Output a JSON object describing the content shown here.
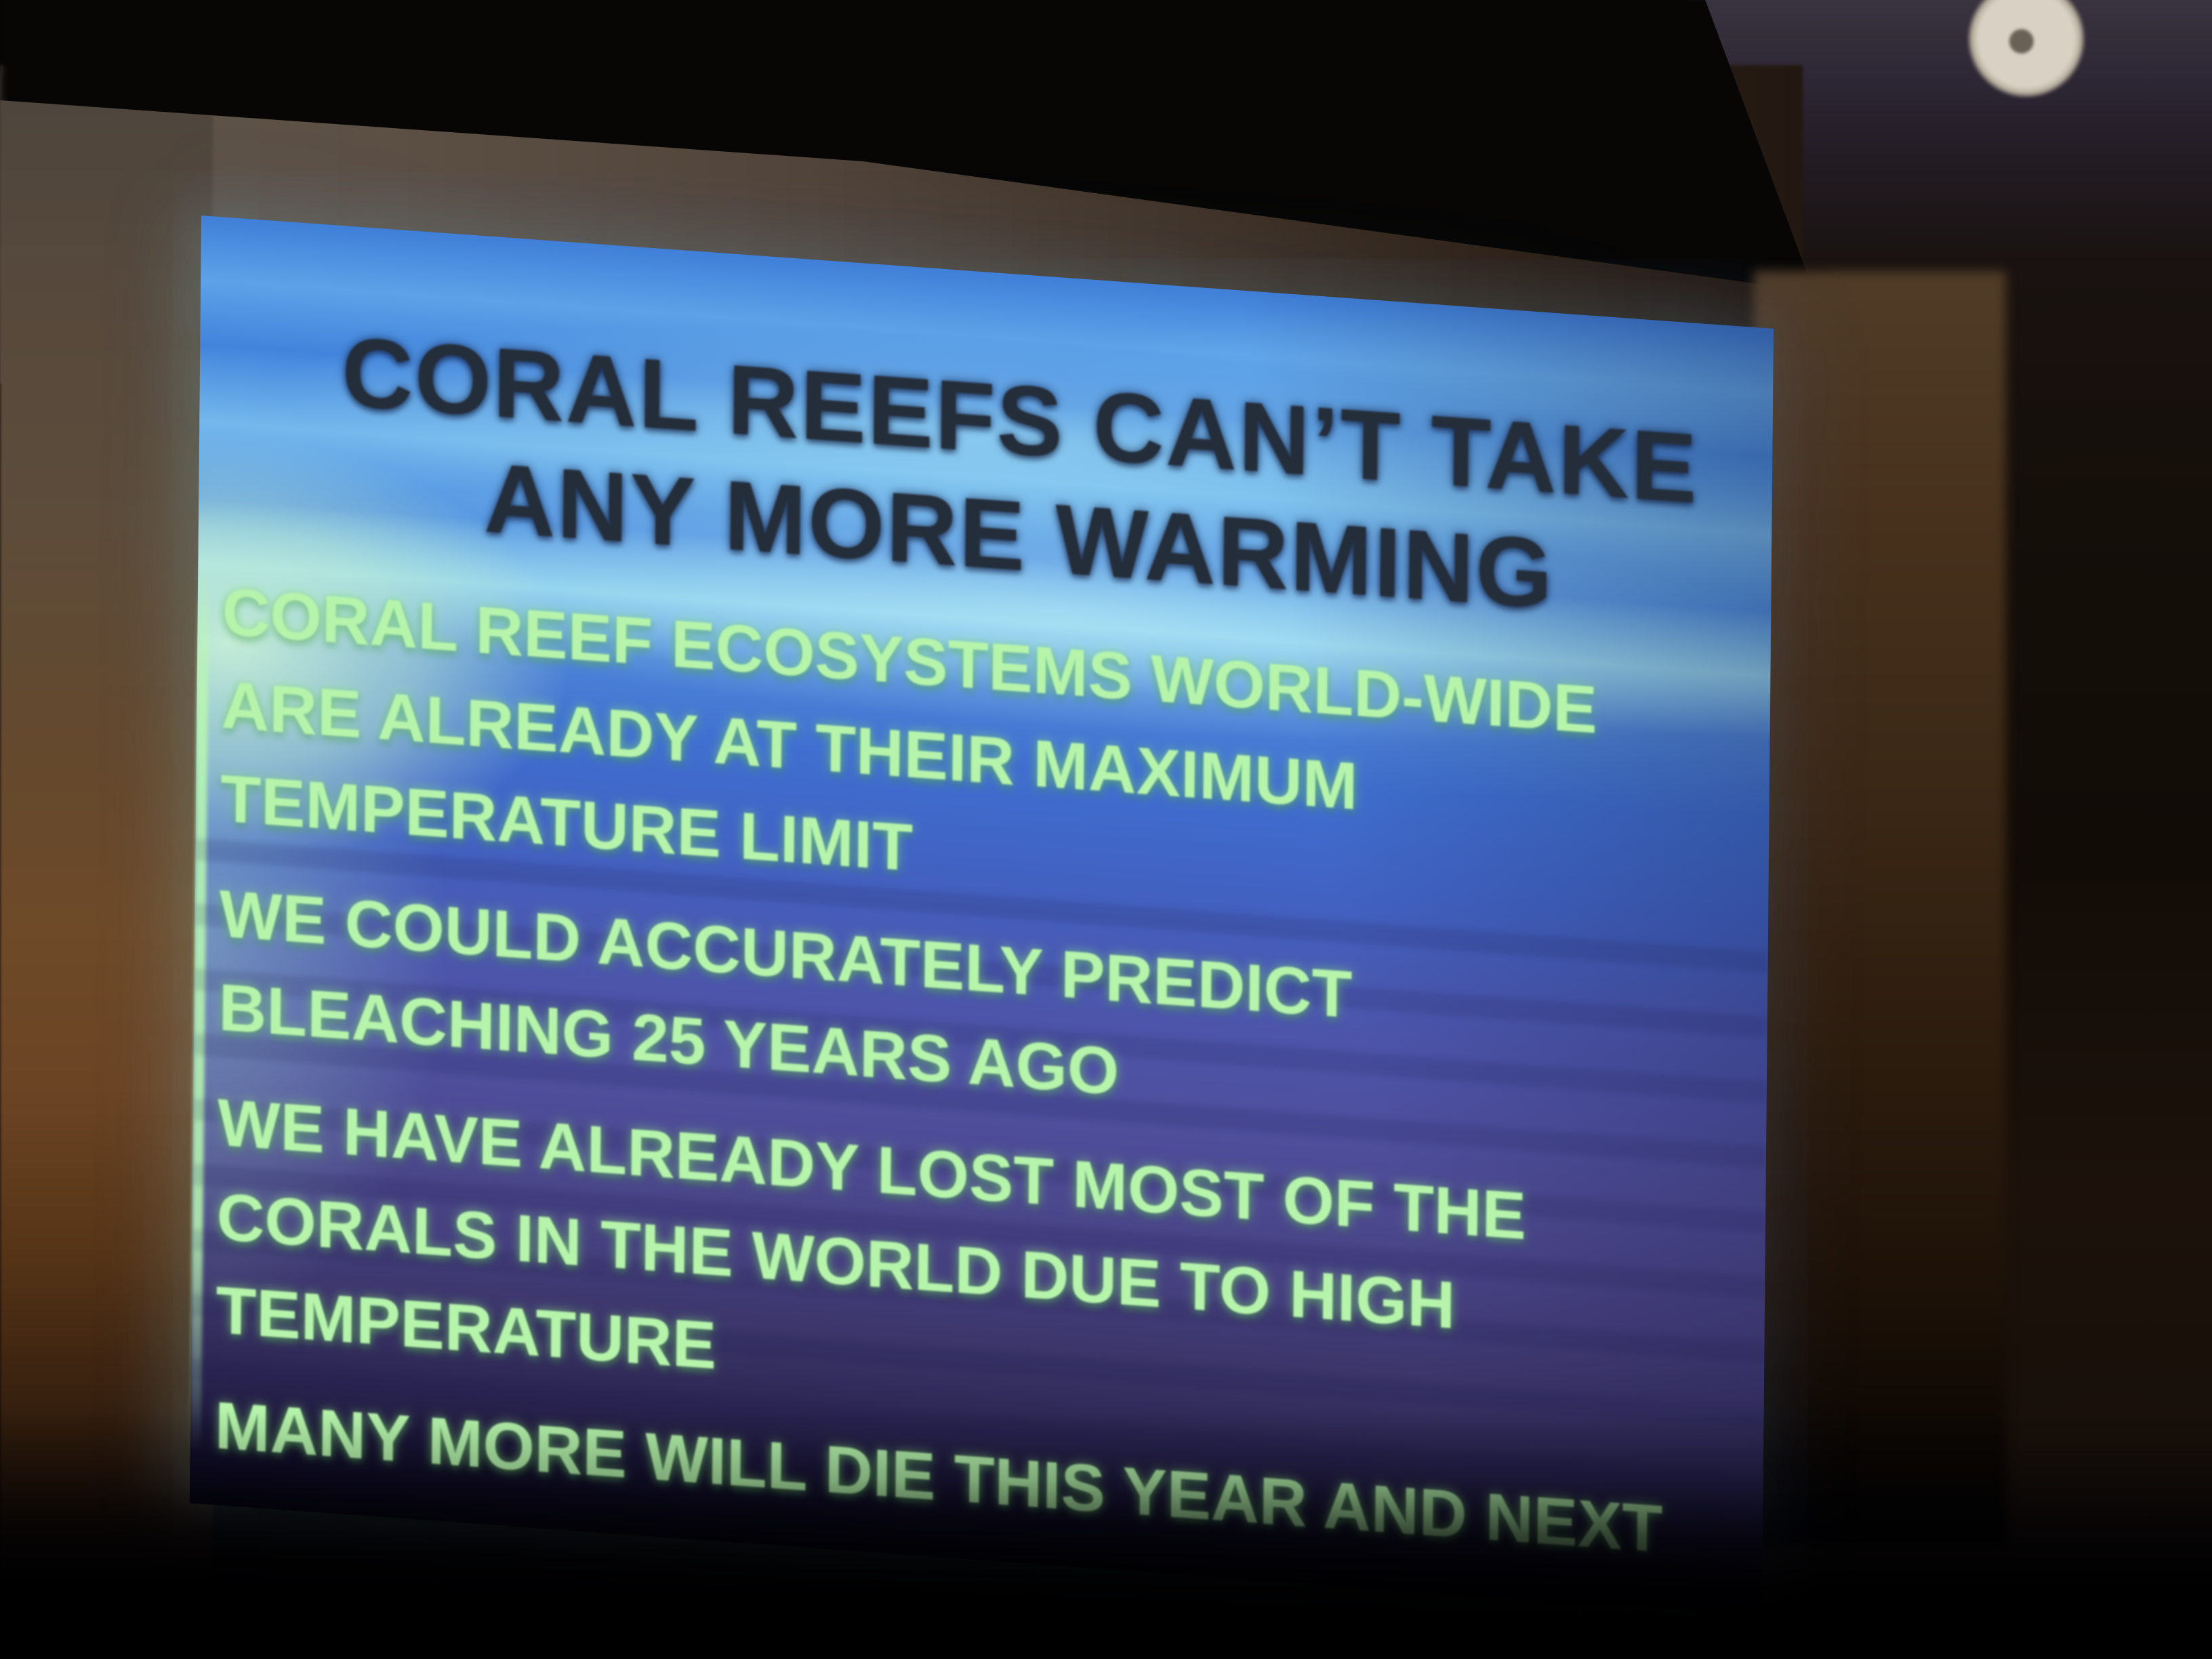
{
  "slide": {
    "title_lines": [
      "CORAL REEFS CAN’T TAKE",
      "ANY MORE WARMING"
    ],
    "bullets": [
      [
        "CORAL REEF ECOSYSTEMS WORLD-WIDE",
        "ARE ALREADY AT THEIR MAXIMUM",
        "TEMPERATURE LIMIT"
      ],
      [
        "WE COULD ACCURATELY PREDICT",
        "BLEACHING 25 YEARS AGO"
      ],
      [
        "WE HAVE ALREADY LOST MOST OF THE",
        "CORALS IN THE WORLD DUE TO HIGH",
        "TEMPERATURE"
      ],
      [
        "MANY MORE WILL DIE THIS YEAR AND NEXT"
      ]
    ],
    "colors": {
      "title_text": "#242d3a",
      "body_text": "#b6f4ac",
      "background_top_blue": "#4c8fe2",
      "background_pale_streak": "#8ecfec",
      "background_pale_green_patch": "#cdf4dc",
      "background_mid_blue": "#4459b4",
      "background_lower_violet": "#4d4a92",
      "background_bottom": "#0a0820",
      "left_edge_glow": "#b9f8af"
    }
  },
  "room": {
    "colors": {
      "ceiling_shadow": "#070605",
      "wall_taupe_above_screen": "#5f554b",
      "wall_warm_left": "#6e4a28",
      "wall_right_strip": "#47311d",
      "dark_corner_right": "#150f0a",
      "smoke_detector": "#d9d2c4",
      "bottom_darkness": "#000000"
    }
  }
}
